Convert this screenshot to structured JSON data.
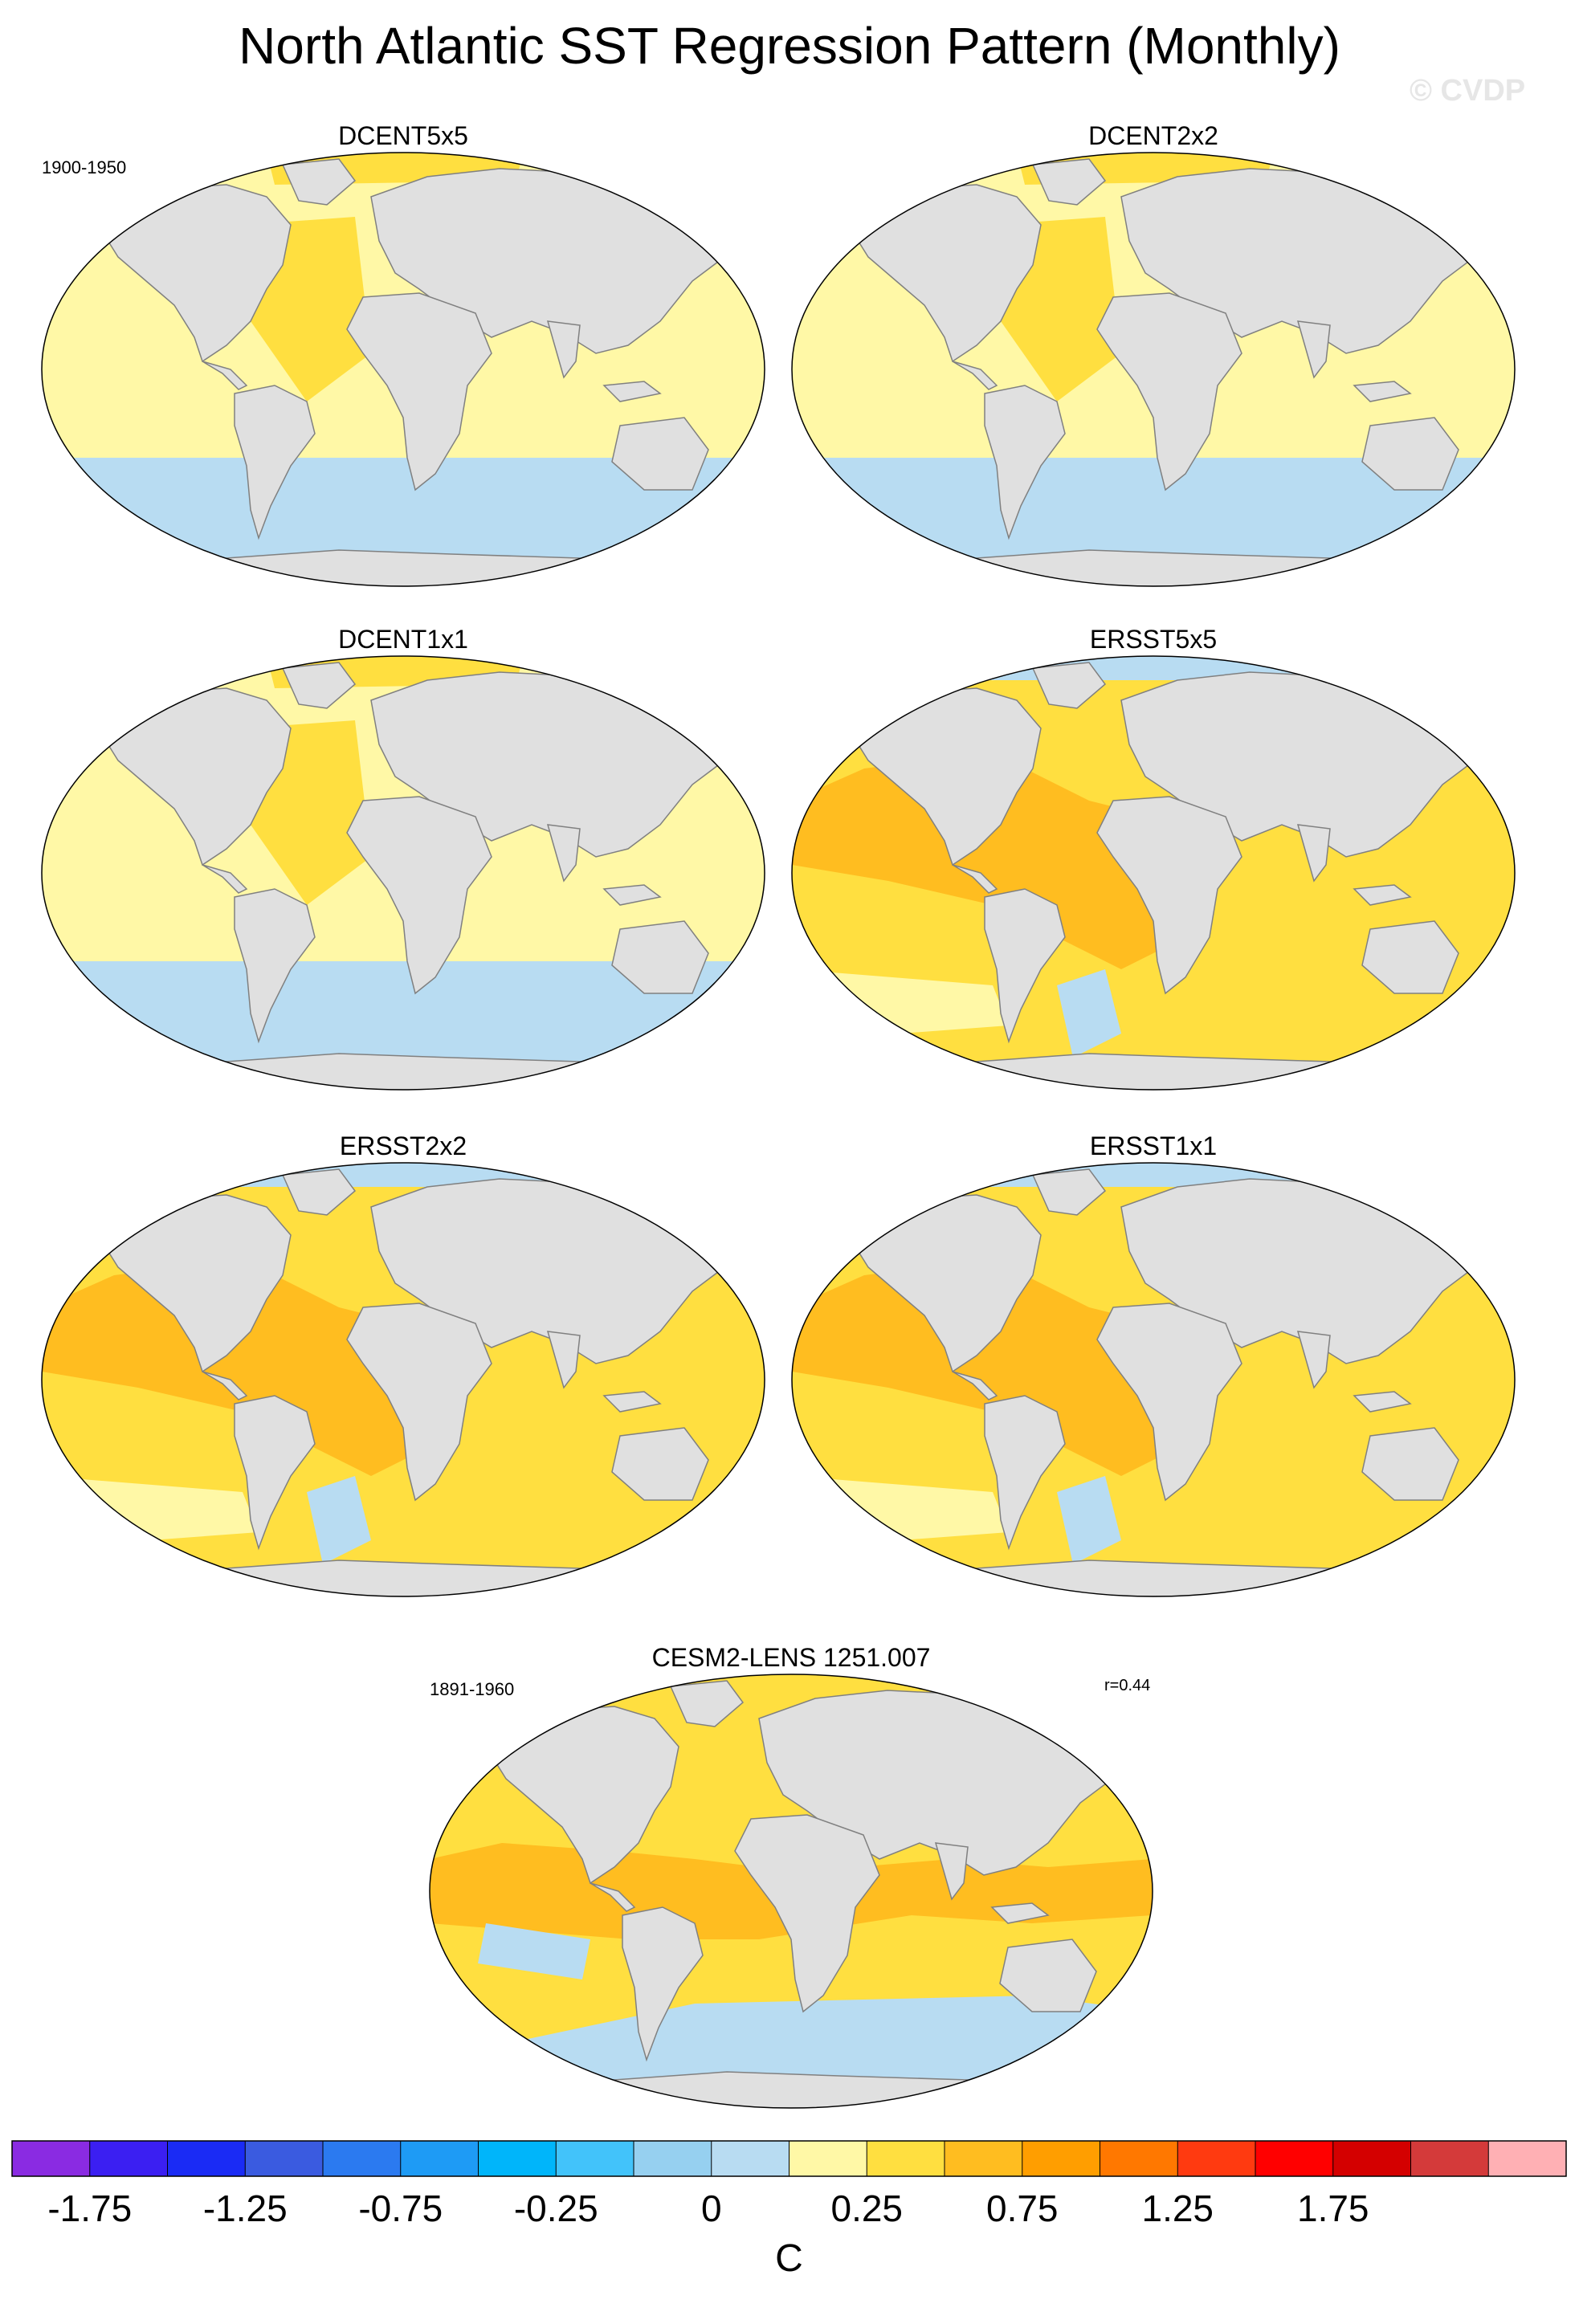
{
  "title": "North Atlantic SST Regression Pattern (Monthly)",
  "watermark": "© CVDP",
  "colors": {
    "ocean_neg": "#b8dcf2",
    "ocean_pos_light": "#fff8a6",
    "ocean_pos_mid": "#ffdf40",
    "ocean_pos_high": "#ffbd20",
    "land": "#e0e0e0",
    "coast": "#808080"
  },
  "chart_data": [
    {
      "type": "heatmap",
      "title": "DCENT5x5",
      "period": "1900-1950",
      "annotation": ""
    },
    {
      "type": "heatmap",
      "title": "DCENT2x2",
      "period": "",
      "annotation": ""
    },
    {
      "type": "heatmap",
      "title": "DCENT1x1",
      "period": "",
      "annotation": ""
    },
    {
      "type": "heatmap",
      "title": "ERSST5x5",
      "period": "",
      "annotation": ""
    },
    {
      "type": "heatmap",
      "title": "ERSST2x2",
      "period": "",
      "annotation": ""
    },
    {
      "type": "heatmap",
      "title": "ERSST1x1",
      "period": "",
      "annotation": ""
    },
    {
      "type": "heatmap",
      "title": "CESM2-LENS 1251.007",
      "period": "1891-1960",
      "annotation": "r=0.44"
    }
  ],
  "colorbar": {
    "unit": "C",
    "labels": [
      "-1.75",
      "-1.25",
      "-0.75",
      "-0.25",
      "0",
      "0.25",
      "0.75",
      "1.25",
      "1.75"
    ],
    "colors": [
      "#8a2be2",
      "#3b1ff2",
      "#1a2bf5",
      "#3a5be0",
      "#2b7af0",
      "#1e9bf5",
      "#00b5fa",
      "#42c3fa",
      "#96d0f0",
      "#b8dcf2",
      "#fff8a6",
      "#ffdf40",
      "#ffbd20",
      "#ff9e00",
      "#ff7800",
      "#ff3a10",
      "#ff0000",
      "#d40000",
      "#d43a3a",
      "#ffb0b4"
    ]
  }
}
